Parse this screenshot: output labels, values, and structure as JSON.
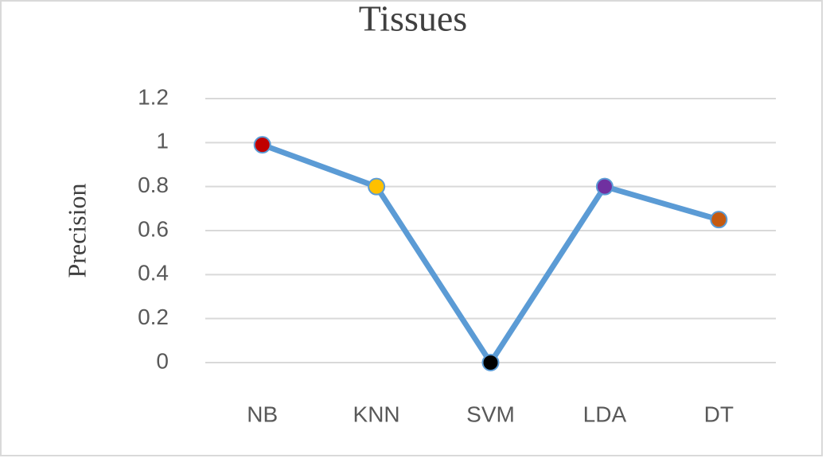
{
  "chart_data": {
    "type": "line",
    "title": "Tissues",
    "y_label": "Precision",
    "categories": [
      "NB",
      "KNN",
      "SVM",
      "LDA",
      "DT"
    ],
    "series": [
      {
        "name": "Precision",
        "color": "#5b9bd5",
        "point_colors": [
          "#c00000",
          "#ffc000",
          "#000000",
          "#7030a0",
          "#c55a11"
        ],
        "values": [
          0.99,
          0.8,
          0,
          0.8,
          0.65
        ]
      }
    ],
    "ylim": [
      0,
      1.2
    ],
    "yticks": [
      0,
      0.2,
      0.4,
      0.6,
      0.8,
      1,
      1.2
    ],
    "grid": true,
    "legend": false
  }
}
